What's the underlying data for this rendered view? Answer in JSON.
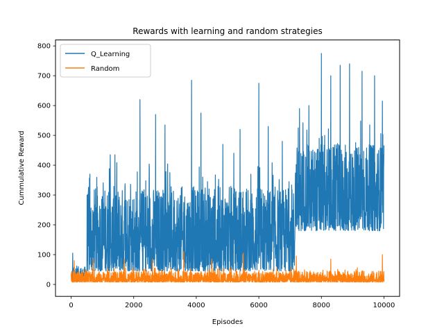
{
  "chart_data": {
    "type": "line",
    "title": "Rewards with learning and random strategies",
    "xlabel": "Episodes",
    "ylabel": "Cummulative Reward",
    "xlim": [
      -500,
      10500
    ],
    "ylim": [
      -40,
      820
    ],
    "xticks": [
      0,
      2000,
      4000,
      6000,
      8000,
      10000
    ],
    "xtick_labels": [
      "0",
      "2000",
      "4000",
      "6000",
      "8000",
      "10000"
    ],
    "yticks": [
      0,
      100,
      200,
      300,
      400,
      500,
      600,
      700,
      800
    ],
    "ytick_labels": [
      "0",
      "100",
      "200",
      "300",
      "400",
      "500",
      "600",
      "700",
      "800"
    ],
    "grid": false,
    "legend_position": "upper-left",
    "n_episodes": 10000,
    "series": [
      {
        "name": "Q_Learning",
        "color": "#1f77b4",
        "segments": [
          {
            "x_start": 0,
            "x_end": 500,
            "low": 10,
            "high": 60
          },
          {
            "x_start": 500,
            "x_end": 7150,
            "low": 45,
            "high": 330
          },
          {
            "x_start": 7150,
            "x_end": 10000,
            "low": 180,
            "high": 470
          }
        ],
        "peaks": [
          {
            "x": 50,
            "y": 105
          },
          {
            "x": 600,
            "y": 370
          },
          {
            "x": 1250,
            "y": 435
          },
          {
            "x": 1400,
            "y": 435
          },
          {
            "x": 2200,
            "y": 620
          },
          {
            "x": 2700,
            "y": 570
          },
          {
            "x": 3000,
            "y": 535
          },
          {
            "x": 3850,
            "y": 685
          },
          {
            "x": 4150,
            "y": 575
          },
          {
            "x": 4850,
            "y": 470
          },
          {
            "x": 5200,
            "y": 440
          },
          {
            "x": 5400,
            "y": 520
          },
          {
            "x": 6000,
            "y": 675
          },
          {
            "x": 6300,
            "y": 530
          },
          {
            "x": 6750,
            "y": 480
          },
          {
            "x": 7300,
            "y": 590
          },
          {
            "x": 7600,
            "y": 600
          },
          {
            "x": 8000,
            "y": 775
          },
          {
            "x": 8300,
            "y": 700
          },
          {
            "x": 8600,
            "y": 735
          },
          {
            "x": 8900,
            "y": 740
          },
          {
            "x": 9300,
            "y": 715
          },
          {
            "x": 9700,
            "y": 700
          },
          {
            "x": 9950,
            "y": 615
          }
        ]
      },
      {
        "name": "Random",
        "color": "#ff7f0e",
        "segments": [
          {
            "x_start": 0,
            "x_end": 10000,
            "low": 8,
            "high": 45
          }
        ],
        "peaks": [
          {
            "x": 100,
            "y": 80
          },
          {
            "x": 700,
            "y": 85
          },
          {
            "x": 1700,
            "y": 85
          },
          {
            "x": 2600,
            "y": 85
          },
          {
            "x": 3600,
            "y": 110
          },
          {
            "x": 4500,
            "y": 85
          },
          {
            "x": 5500,
            "y": 105
          },
          {
            "x": 7200,
            "y": 95
          },
          {
            "x": 8300,
            "y": 85
          },
          {
            "x": 9950,
            "y": 100
          }
        ]
      }
    ]
  }
}
